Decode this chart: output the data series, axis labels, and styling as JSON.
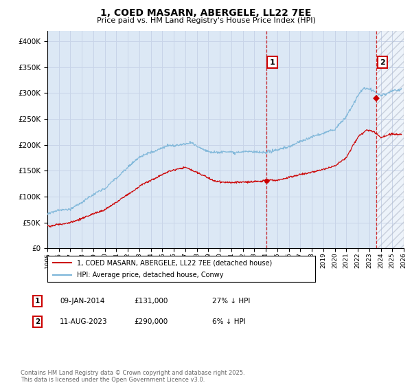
{
  "title": "1, COED MASARN, ABERGELE, LL22 7EE",
  "subtitle": "Price paid vs. HM Land Registry's House Price Index (HPI)",
  "legend_line1": "1, COED MASARN, ABERGELE, LL22 7EE (detached house)",
  "legend_line2": "HPI: Average price, detached house, Conwy",
  "point1_date": "09-JAN-2014",
  "point1_price": "£131,000",
  "point1_hpi": "27% ↓ HPI",
  "point2_date": "11-AUG-2023",
  "point2_price": "£290,000",
  "point2_hpi": "6% ↓ HPI",
  "footer": "Contains HM Land Registry data © Crown copyright and database right 2025.\nThis data is licensed under the Open Government Licence v3.0.",
  "hpi_color": "#7ab4d8",
  "price_color": "#cc0000",
  "grid_color": "#c8d4e8",
  "plot_bg_color": "#dce8f5",
  "background_color": "#ffffff",
  "ylim": [
    0,
    420000
  ],
  "yticks": [
    0,
    50000,
    100000,
    150000,
    200000,
    250000,
    300000,
    350000,
    400000
  ],
  "year_start": 1995,
  "year_end": 2026,
  "purchase_year1": 2014.03,
  "purchase_price1": 131000,
  "purchase_year2": 2023.62,
  "purchase_price2": 290000
}
